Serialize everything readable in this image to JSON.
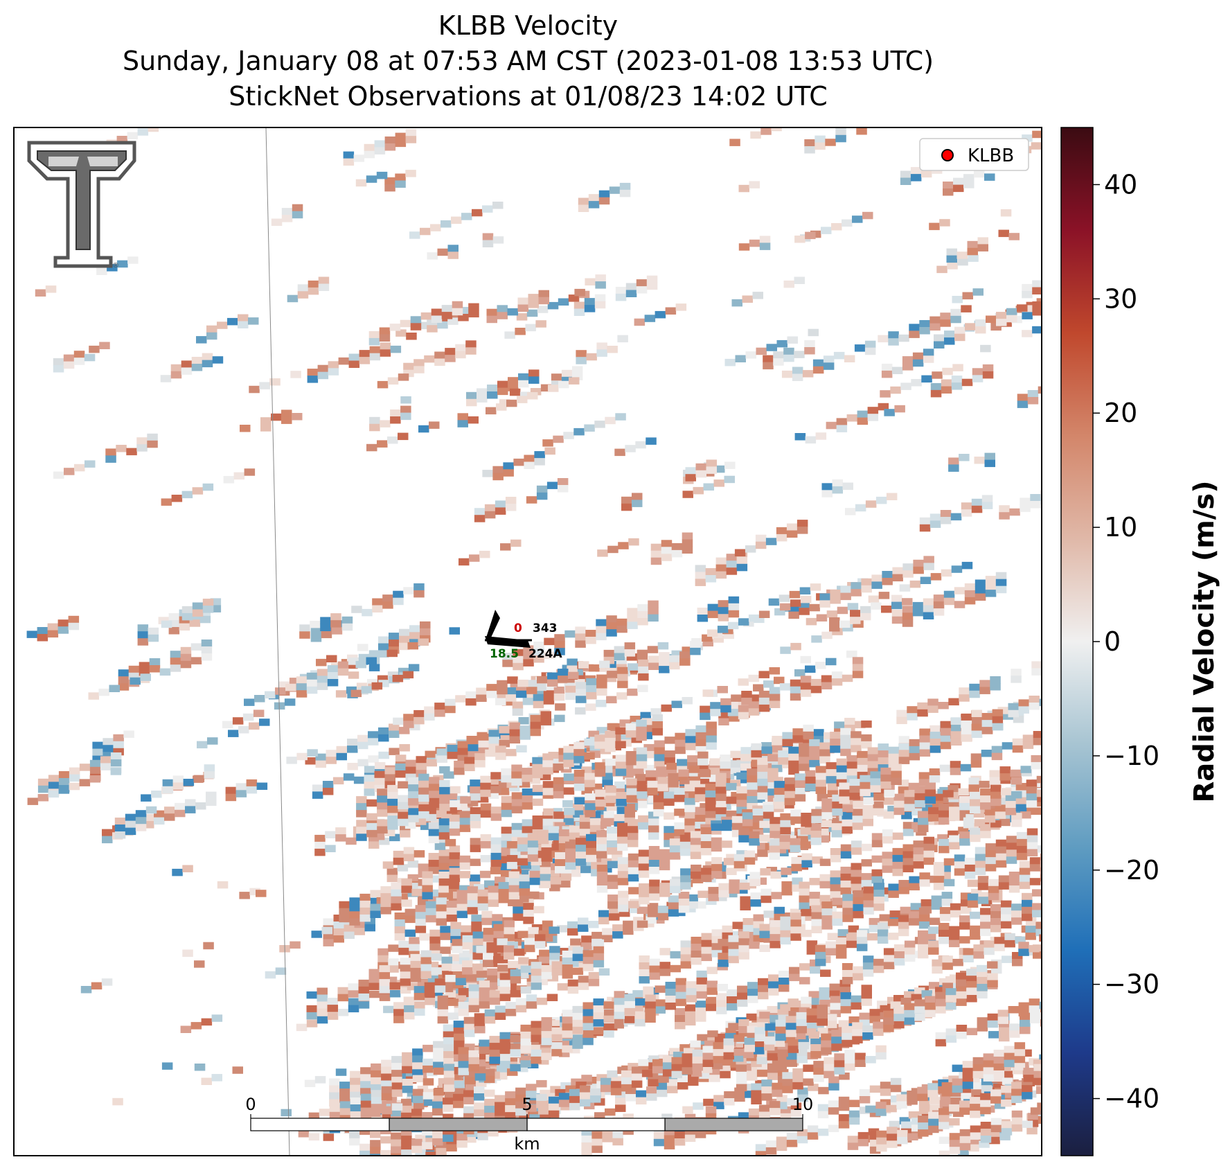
{
  "title": {
    "line1": "KLBB Velocity",
    "line2": "Sunday, January 08 at 07:53 AM CST (2023-01-08 13:53 UTC)",
    "line3": "StickNet Observations at 01/08/23 14:02 UTC"
  },
  "legend": {
    "label": "KLBB",
    "marker_color": "#ff0000"
  },
  "logo": {
    "name": "texas-tech-double-t-logo",
    "mark": "®"
  },
  "station": {
    "id": "224A",
    "temp_label": "0",
    "temp_color": "#cc0000",
    "pressure_label": "343",
    "dewpoint_label": "18.5",
    "dewpoint_color": "#006400"
  },
  "scalebar": {
    "ticks": [
      "0",
      "5",
      "10"
    ],
    "unit_label": "km",
    "segment_colors": [
      "#ffffff",
      "#aaaaaa",
      "#ffffff",
      "#aaaaaa"
    ]
  },
  "colorbar": {
    "label": "Radial Velocity (m/s)",
    "range": [
      -45,
      45
    ],
    "ticks": [
      40,
      30,
      20,
      10,
      0,
      -10,
      -20,
      -30,
      -40
    ],
    "tick_labels": [
      "40",
      "30",
      "20",
      "10",
      "0",
      "−10",
      "−20",
      "−30",
      "−40"
    ],
    "colors": [
      "#1b1f3f",
      "#1e3a8a",
      "#1f6fb8",
      "#5f9cc1",
      "#a7c4d2",
      "#f0f0f0",
      "#e0b8a8",
      "#d3866a",
      "#c0482d",
      "#8b1227",
      "#3b0b12"
    ]
  },
  "chart_data": {
    "type": "heatmap",
    "variable": "Radial Velocity",
    "units": "m/s",
    "value_range": [
      -45,
      45
    ],
    "dominant_range_observed": [
      -25,
      25
    ],
    "field_structure": "banded velocity returns oriented WSW-ENE; predominantly positive (outbound, red) values over the lower right, mixed negative (inbound, blue) patches to the upper and left"
  }
}
